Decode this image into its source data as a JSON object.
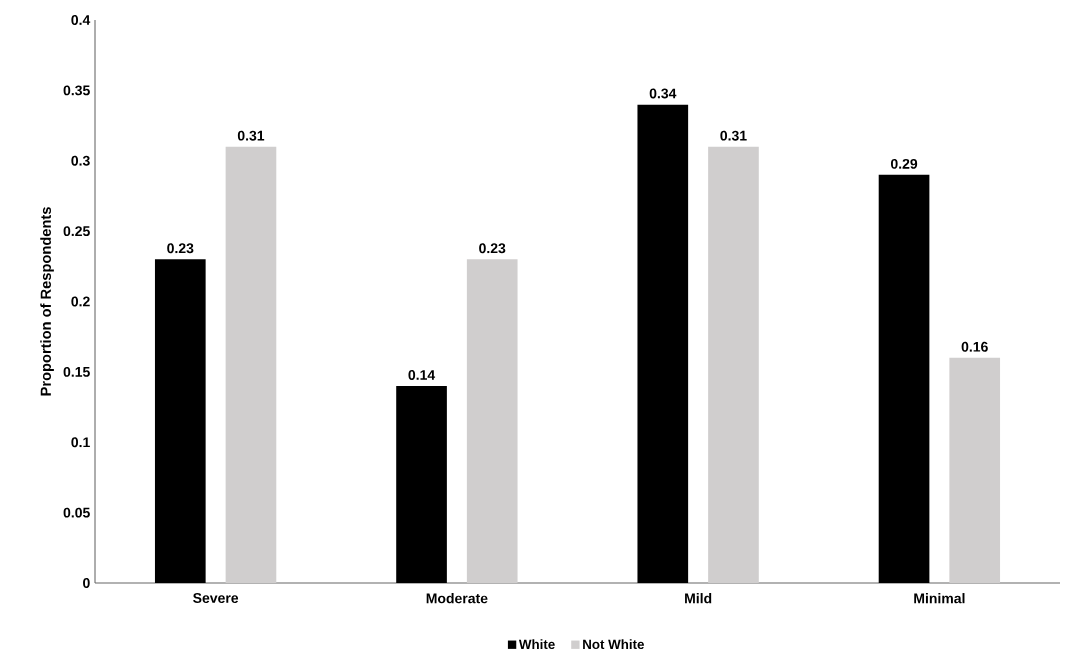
{
  "chart_data": {
    "type": "bar",
    "ylabel": "Proportion of Respondents",
    "categories": [
      "Severe",
      "Moderate",
      "Mild",
      "Minimal"
    ],
    "series": [
      {
        "name": "White",
        "color": "#000000",
        "values": [
          0.23,
          0.14,
          0.34,
          0.29
        ]
      },
      {
        "name": "Not White",
        "color": "#d0cece",
        "values": [
          0.31,
          0.23,
          0.31,
          0.16
        ]
      }
    ],
    "ylim": [
      0,
      0.4
    ],
    "yticks": [
      0,
      0.05,
      0.1,
      0.15,
      0.2,
      0.25,
      0.3,
      0.35,
      0.4
    ],
    "data_labels": true,
    "grid": false,
    "legend": "bottom"
  }
}
